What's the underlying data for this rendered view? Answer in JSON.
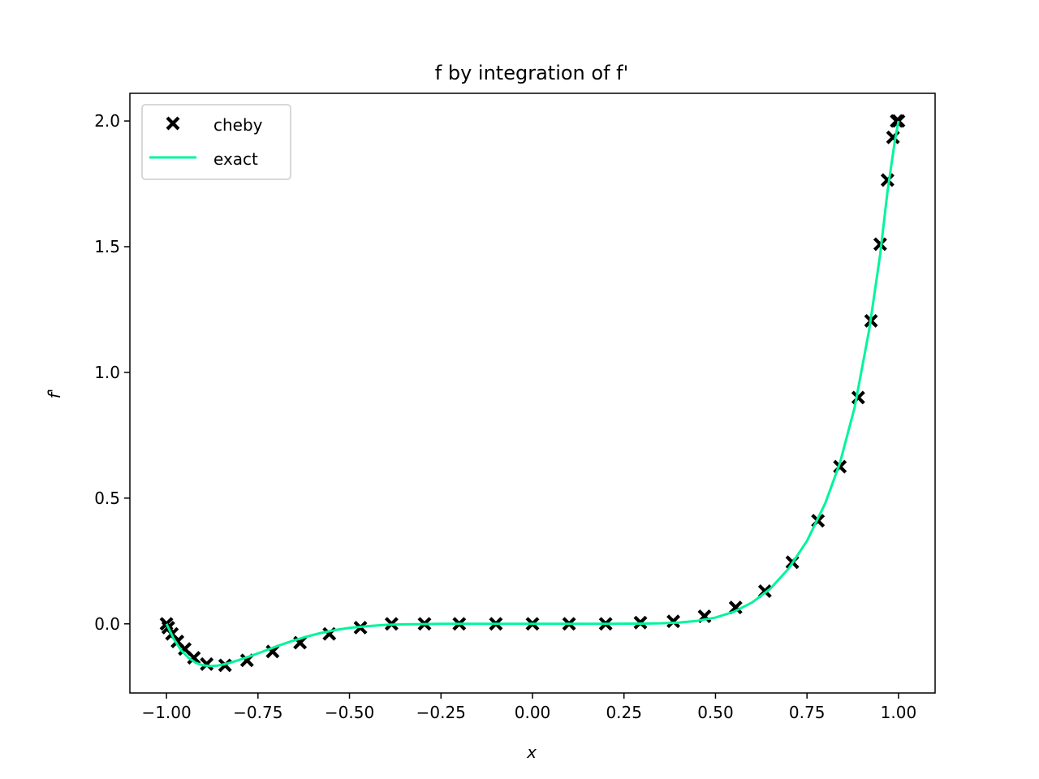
{
  "chart_data": {
    "type": "line",
    "title": "f by integration of f'",
    "xlabel": "x",
    "ylabel": "f'",
    "xlim": [
      -1.1,
      1.1
    ],
    "ylim": [
      -0.275,
      2.11
    ],
    "xticks": [
      -1.0,
      -0.75,
      -0.5,
      -0.25,
      0.0,
      0.25,
      0.5,
      0.75,
      1.0
    ],
    "xtick_labels": [
      "−1.00",
      "−0.75",
      "−0.50",
      "−0.25",
      "0.00",
      "0.25",
      "0.50",
      "0.75",
      "1.00"
    ],
    "yticks": [
      0.0,
      0.5,
      1.0,
      1.5,
      2.0
    ],
    "ytick_labels": [
      "0.0",
      "0.5",
      "1.0",
      "1.5",
      "2.0"
    ],
    "legend": {
      "location": "upper-left"
    },
    "series": [
      {
        "name": "cheby",
        "style": "markers",
        "marker": "x-filled",
        "color": "#000000",
        "x": [
          -1.0,
          -0.995,
          -0.985,
          -0.97,
          -0.95,
          -0.925,
          -0.89,
          -0.84,
          -0.78,
          -0.71,
          -0.635,
          -0.555,
          -0.47,
          -0.385,
          -0.295,
          -0.2,
          -0.1,
          0.0,
          0.1,
          0.2,
          0.295,
          0.385,
          0.47,
          0.555,
          0.635,
          0.71,
          0.78,
          0.84,
          0.89,
          0.925,
          0.95,
          0.97,
          0.985,
          0.995,
          1.0
        ],
        "y": [
          0.0,
          -0.015,
          -0.04,
          -0.07,
          -0.1,
          -0.135,
          -0.16,
          -0.165,
          -0.145,
          -0.11,
          -0.075,
          -0.04,
          -0.015,
          0.0,
          0.0,
          0.0,
          0.0,
          0.0,
          0.0,
          0.0,
          0.005,
          0.01,
          0.03,
          0.065,
          0.13,
          0.245,
          0.41,
          0.625,
          0.9,
          1.205,
          1.51,
          1.765,
          1.935,
          2.0,
          2.0
        ]
      },
      {
        "name": "exact",
        "style": "line",
        "color": "#00f59b",
        "x": [
          -1.0,
          -0.98,
          -0.96,
          -0.94,
          -0.92,
          -0.9,
          -0.88,
          -0.86,
          -0.84,
          -0.82,
          -0.8,
          -0.77,
          -0.74,
          -0.7,
          -0.66,
          -0.62,
          -0.58,
          -0.54,
          -0.5,
          -0.45,
          -0.4,
          -0.35,
          -0.3,
          -0.25,
          -0.2,
          -0.1,
          0.0,
          0.1,
          0.2,
          0.3,
          0.35,
          0.4,
          0.45,
          0.5,
          0.55,
          0.6,
          0.65,
          0.7,
          0.75,
          0.8,
          0.84,
          0.88,
          0.92,
          0.95,
          0.97,
          0.99,
          1.0
        ],
        "y": [
          0.0,
          -0.06,
          -0.105,
          -0.135,
          -0.155,
          -0.165,
          -0.168,
          -0.166,
          -0.16,
          -0.152,
          -0.143,
          -0.128,
          -0.112,
          -0.09,
          -0.07,
          -0.052,
          -0.037,
          -0.025,
          -0.016,
          -0.009,
          -0.004,
          -0.002,
          -0.001,
          0.0,
          0.0,
          0.0,
          0.0,
          0.0,
          0.0,
          0.001,
          0.002,
          0.005,
          0.012,
          0.025,
          0.048,
          0.085,
          0.14,
          0.22,
          0.33,
          0.48,
          0.64,
          0.86,
          1.17,
          1.47,
          1.72,
          1.92,
          2.0
        ]
      }
    ]
  }
}
